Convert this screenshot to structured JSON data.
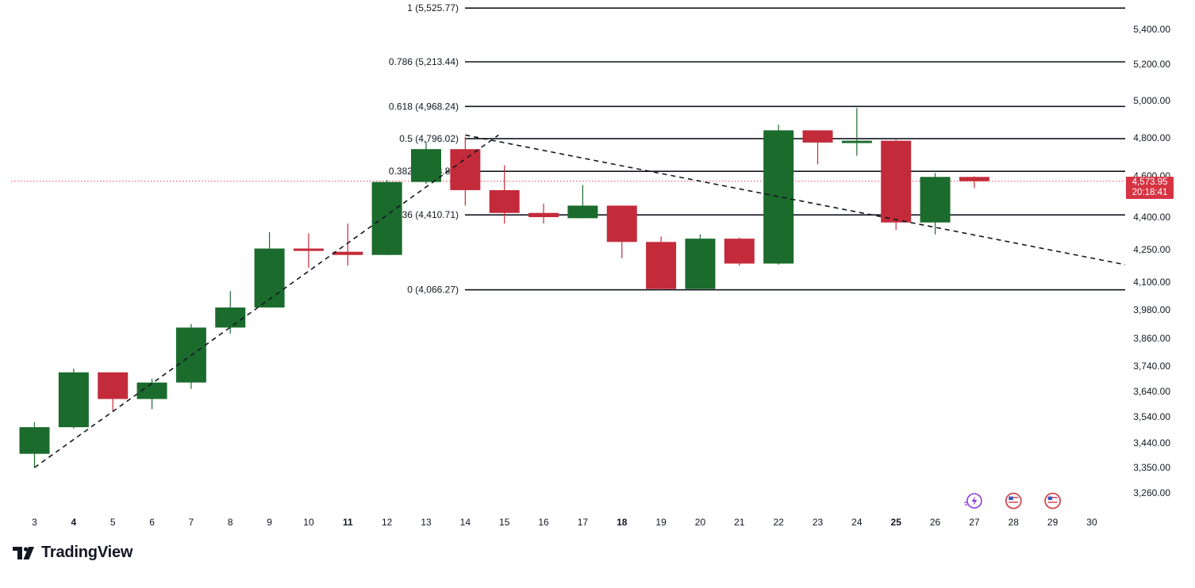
{
  "chart_data": {
    "type": "candlestick",
    "x_labels": [
      "3",
      "4",
      "5",
      "6",
      "7",
      "8",
      "9",
      "10",
      "11",
      "12",
      "13",
      "14",
      "15",
      "16",
      "17",
      "18",
      "19",
      "20",
      "21",
      "22",
      "23",
      "24",
      "25",
      "26",
      "27",
      "28",
      "29",
      "30"
    ],
    "bold_x_labels": [
      "4",
      "11",
      "18",
      "25"
    ],
    "y_ticks": [
      "5,400.00",
      "5,200.00",
      "5,000.00",
      "4,800.00",
      "4,600.00",
      "4,400.00",
      "4,250.00",
      "4,100.00",
      "3,980.00",
      "3,860.00",
      "3,740.00",
      "3,640.00",
      "3,540.00",
      "3,440.00",
      "3,350.00",
      "3,260.00"
    ],
    "y_tick_values": [
      5400,
      5200,
      5000,
      4800,
      4600,
      4400,
      4250,
      4100,
      3980,
      3860,
      3740,
      3640,
      3540,
      3440,
      3350,
      3260
    ],
    "candles": [
      {
        "day": "3",
        "o": 3400,
        "h": 3520,
        "l": 3350,
        "c": 3500
      },
      {
        "day": "4",
        "o": 3500,
        "h": 3730,
        "l": 3495,
        "c": 3715
      },
      {
        "day": "5",
        "o": 3715,
        "h": 3715,
        "l": 3560,
        "c": 3610
      },
      {
        "day": "6",
        "o": 3610,
        "h": 3690,
        "l": 3570,
        "c": 3675
      },
      {
        "day": "7",
        "o": 3675,
        "h": 3920,
        "l": 3650,
        "c": 3905
      },
      {
        "day": "8",
        "o": 3905,
        "h": 4060,
        "l": 3880,
        "c": 3990
      },
      {
        "day": "9",
        "o": 3990,
        "h": 4330,
        "l": 3990,
        "c": 4255
      },
      {
        "day": "10",
        "o": 4255,
        "h": 4325,
        "l": 4165,
        "c": 4245
      },
      {
        "day": "11",
        "o": 4240,
        "h": 4370,
        "l": 4175,
        "c": 4225
      },
      {
        "day": "12",
        "o": 4225,
        "h": 4580,
        "l": 4225,
        "c": 4570
      },
      {
        "day": "13",
        "o": 4570,
        "h": 4780,
        "l": 4560,
        "c": 4740
      },
      {
        "day": "14",
        "o": 4740,
        "h": 4805,
        "l": 4455,
        "c": 4530
      },
      {
        "day": "15",
        "o": 4530,
        "h": 4655,
        "l": 4370,
        "c": 4420
      },
      {
        "day": "16",
        "o": 4420,
        "h": 4465,
        "l": 4370,
        "c": 4400
      },
      {
        "day": "17",
        "o": 4395,
        "h": 4555,
        "l": 4395,
        "c": 4455
      },
      {
        "day": "18",
        "o": 4455,
        "h": 4455,
        "l": 4210,
        "c": 4285
      },
      {
        "day": "19",
        "o": 4285,
        "h": 4310,
        "l": 4066,
        "c": 4070
      },
      {
        "day": "20",
        "o": 4070,
        "h": 4320,
        "l": 4070,
        "c": 4300
      },
      {
        "day": "21",
        "o": 4300,
        "h": 4305,
        "l": 4175,
        "c": 4185
      },
      {
        "day": "22",
        "o": 4185,
        "h": 4870,
        "l": 4180,
        "c": 4840
      },
      {
        "day": "23",
        "o": 4840,
        "h": 4840,
        "l": 4660,
        "c": 4775
      },
      {
        "day": "24",
        "o": 4780,
        "h": 4960,
        "l": 4705,
        "c": 4785
      },
      {
        "day": "25",
        "o": 4785,
        "h": 4790,
        "l": 4340,
        "c": 4375
      },
      {
        "day": "26",
        "o": 4375,
        "h": 4615,
        "l": 4320,
        "c": 4595
      },
      {
        "day": "27",
        "o": 4595,
        "h": 4598,
        "l": 4540,
        "c": 4574
      }
    ],
    "fib_levels": [
      {
        "label": "1 (5,525.77)",
        "value": 5525.77
      },
      {
        "label": "0.786 (5,213.44)",
        "value": 5213.44
      },
      {
        "label": "0.618 (4,968.24)",
        "value": 4968.24
      },
      {
        "label": "0.5 (4,796.02)",
        "value": 4796.02
      },
      {
        "label": "0.382 (4,623.80)",
        "value": 4623.8
      },
      {
        "label": "0.236 (4,410.71)",
        "value": 4410.71
      },
      {
        "label": "0 (4,066.27)",
        "value": 4066.27
      }
    ],
    "trendlines": [
      {
        "from": {
          "day": "3",
          "value": 3350
        },
        "to": {
          "day": "14",
          "value": 4815
        }
      },
      {
        "from": {
          "day": "14",
          "value": 4815
        },
        "to": {
          "day": "30",
          "value": 4180
        }
      }
    ],
    "current_price": {
      "value": 4573.95,
      "label": "4,573.95",
      "countdown": "20:18:41"
    },
    "event_icons": [
      {
        "day": "27",
        "icon": "lightning-event-icon"
      },
      {
        "day": "28",
        "icon": "us-flag-event-icon"
      },
      {
        "day": "29",
        "icon": "us-flag-event-icon"
      }
    ],
    "colors": {
      "up": "#1b6b2d",
      "down": "#c42b3a",
      "price_line": "#e0474f",
      "price_badge": "#d63343",
      "grid_text": "#131722"
    }
  },
  "brand": {
    "name": "TradingView"
  }
}
